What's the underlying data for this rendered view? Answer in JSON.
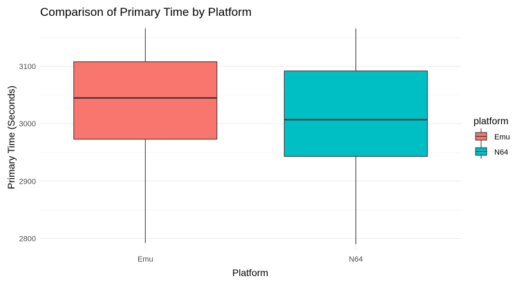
{
  "chart_data": {
    "type": "boxplot",
    "title": "Comparison of Primary Time by Platform",
    "xlabel": "Platform",
    "ylabel": "Primary Time (Seconds)",
    "categories": [
      "Emu",
      "N64"
    ],
    "ylim": [
      2780,
      3170
    ],
    "yticks": [
      2800,
      2900,
      3000,
      3100
    ],
    "grid": true,
    "boxes": [
      {
        "category": "Emu",
        "min": 2792,
        "q1": 2973,
        "median": 3045,
        "q3": 3108,
        "max": 3166,
        "color": "#F8766D"
      },
      {
        "category": "N64",
        "min": 2790,
        "q1": 2943,
        "median": 3007,
        "q3": 3092,
        "max": 3166,
        "color": "#00BFC4"
      }
    ],
    "legend": {
      "title": "platform",
      "position": "right",
      "items": [
        {
          "label": "Emu",
          "color": "#F8766D"
        },
        {
          "label": "N64",
          "color": "#00BFC4"
        }
      ]
    }
  }
}
